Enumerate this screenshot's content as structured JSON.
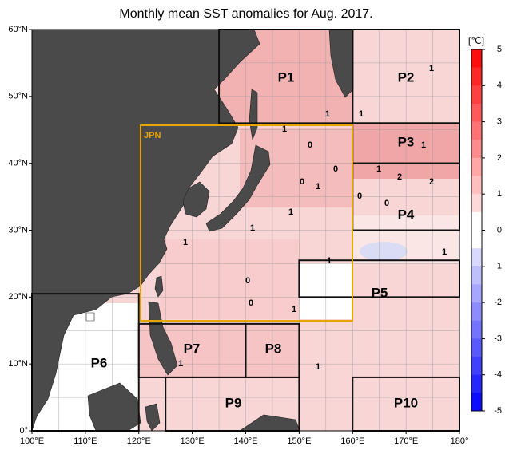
{
  "title": "Monthly mean SST anomalies for Aug. 2017.",
  "lat_ticks": [
    {
      "value": 0,
      "label": "0°"
    },
    {
      "value": 10,
      "label": "10°N"
    },
    {
      "value": 20,
      "label": "20°N"
    },
    {
      "value": 30,
      "label": "30°N"
    },
    {
      "value": 40,
      "label": "40°N"
    },
    {
      "value": 50,
      "label": "50°N"
    },
    {
      "value": 60,
      "label": "60°N"
    }
  ],
  "lon_ticks": [
    {
      "value": 100,
      "label": "100°E"
    },
    {
      "value": 110,
      "label": "110°E"
    },
    {
      "value": 120,
      "label": "120°E"
    },
    {
      "value": 130,
      "label": "130°E"
    },
    {
      "value": 140,
      "label": "140°E"
    },
    {
      "value": 150,
      "label": "150°E"
    },
    {
      "value": 160,
      "label": "160°E"
    },
    {
      "value": 170,
      "label": "170°E"
    },
    {
      "value": 180,
      "label": "180°"
    }
  ],
  "colorbar": {
    "unit": "[℃]",
    "ticks": [
      5,
      4,
      3,
      2,
      1,
      0,
      -1,
      -2,
      -3,
      -4,
      -5
    ]
  },
  "regions": [
    "P1",
    "P2",
    "P3",
    "P4",
    "P5",
    "P6",
    "P7",
    "P8",
    "P9",
    "P10"
  ],
  "jpn_label": "JPN",
  "contour_labels": [
    "1",
    "1",
    "1",
    "1",
    "0",
    "1",
    "0",
    "1",
    "2",
    "2",
    "0",
    "1",
    "0",
    "0",
    "1",
    "1",
    "1",
    "1",
    "1",
    "0",
    "0",
    "1",
    "1",
    "1"
  ]
}
